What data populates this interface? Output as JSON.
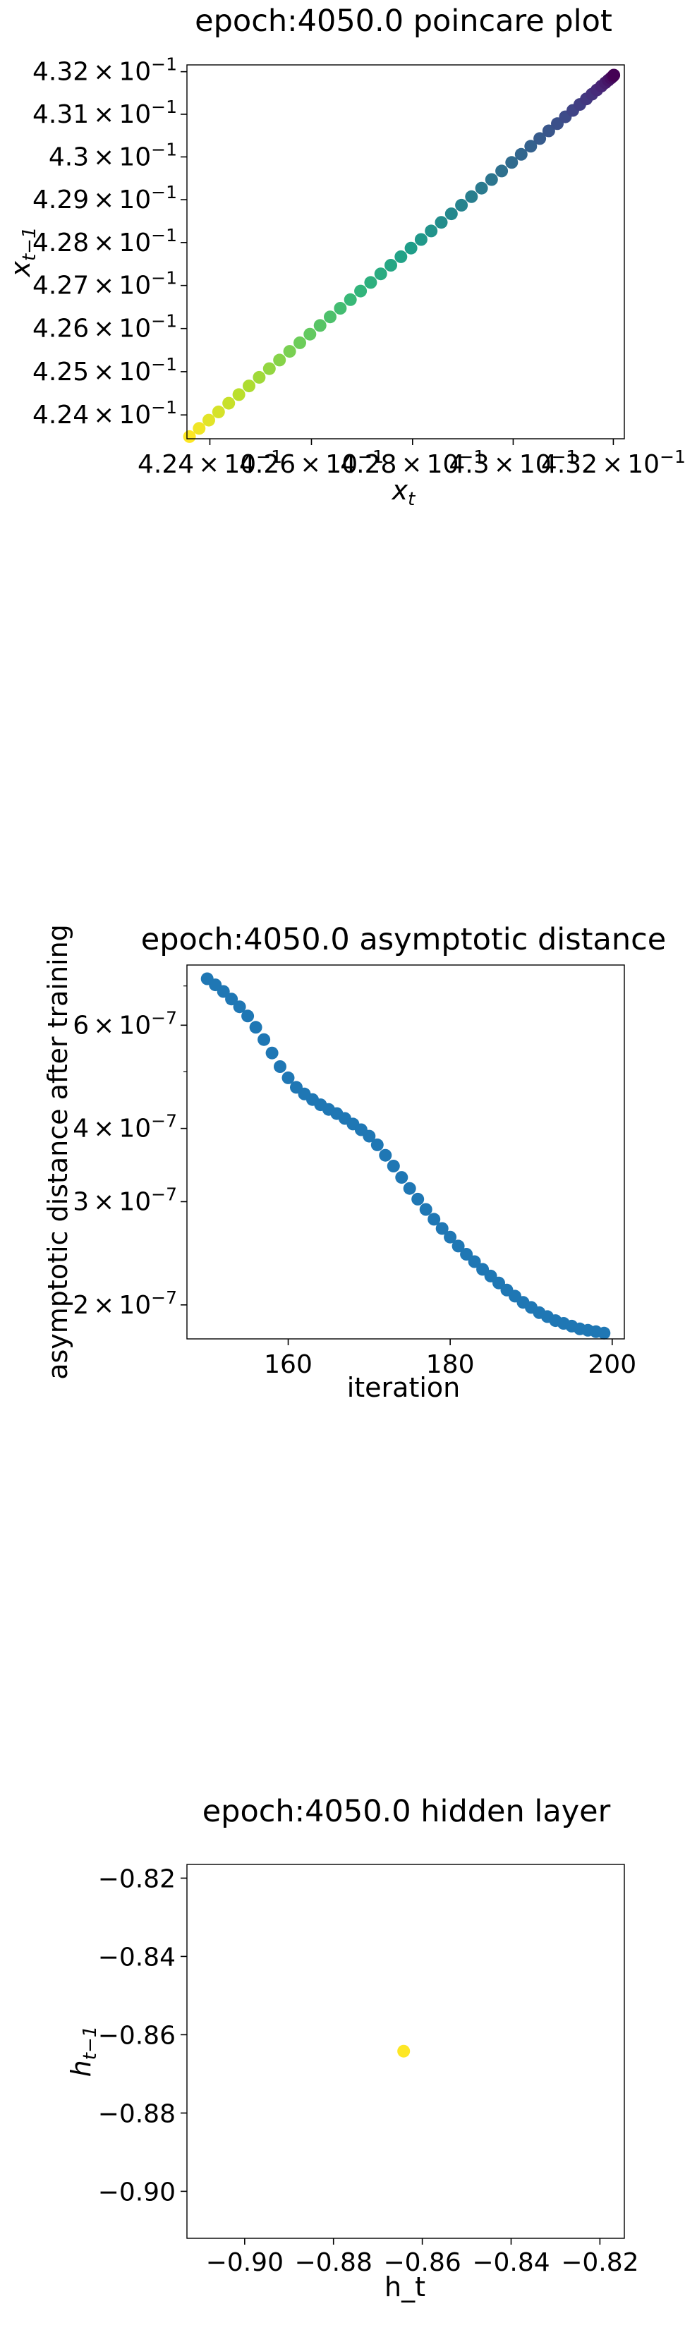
{
  "chart_data": [
    {
      "type": "scatter",
      "title": "epoch:4050.0 poincare plot",
      "xlabel": "x",
      "xlabel_sub": "t",
      "ylabel": "x",
      "ylabel_sub": "t−1",
      "xscale": "log",
      "yscale": "log",
      "xlim": [
        0.42355,
        0.43222
      ],
      "ylim": [
        0.42345,
        0.43216
      ],
      "xticks": [
        {
          "value": 0.424,
          "mantissa": "4.24",
          "times": "×",
          "base": "10",
          "exp": "−1"
        },
        {
          "value": 0.426,
          "mantissa": "4.26",
          "times": "×",
          "base": "10",
          "exp": "−1"
        },
        {
          "value": 0.428,
          "mantissa": "4.28",
          "times": "×",
          "base": "10",
          "exp": "−1"
        },
        {
          "value": 0.43,
          "mantissa": "4.3",
          "times": "×",
          "base": "10",
          "exp": "−1"
        },
        {
          "value": 0.432,
          "mantissa": "4.32",
          "times": "×",
          "base": "10",
          "exp": "−1"
        }
      ],
      "yticks": [
        {
          "value": 0.424,
          "mantissa": "4.24",
          "times": "×",
          "base": "10",
          "exp": "−1"
        },
        {
          "value": 0.425,
          "mantissa": "4.25",
          "times": "×",
          "base": "10",
          "exp": "−1"
        },
        {
          "value": 0.426,
          "mantissa": "4.26",
          "times": "×",
          "base": "10",
          "exp": "−1"
        },
        {
          "value": 0.427,
          "mantissa": "4.27",
          "times": "×",
          "base": "10",
          "exp": "−1"
        },
        {
          "value": 0.428,
          "mantissa": "4.28",
          "times": "×",
          "base": "10",
          "exp": "−1"
        },
        {
          "value": 0.429,
          "mantissa": "4.29",
          "times": "×",
          "base": "10",
          "exp": "−1"
        },
        {
          "value": 0.43,
          "mantissa": "4.3",
          "times": "×",
          "base": "10",
          "exp": "−1"
        },
        {
          "value": 0.431,
          "mantissa": "4.31",
          "times": "×",
          "base": "10",
          "exp": "−1"
        },
        {
          "value": 0.432,
          "mantissa": "4.32",
          "times": "×",
          "base": "10",
          "exp": "−1"
        }
      ],
      "colormap": "viridis",
      "x": [
        0.4236,
        0.42379,
        0.42398,
        0.42417,
        0.42437,
        0.42457,
        0.42477,
        0.42497,
        0.42517,
        0.42537,
        0.42557,
        0.42577,
        0.42597,
        0.42617,
        0.42637,
        0.42657,
        0.42677,
        0.42697,
        0.42717,
        0.42737,
        0.42757,
        0.42777,
        0.42797,
        0.42817,
        0.42837,
        0.42857,
        0.42877,
        0.42897,
        0.42917,
        0.42937,
        0.42957,
        0.42977,
        0.42997,
        0.43016,
        0.43035,
        0.43053,
        0.43071,
        0.43088,
        0.43104,
        0.43119,
        0.43133,
        0.43146,
        0.43157,
        0.43167,
        0.43176,
        0.43184,
        0.4319,
        0.43195,
        0.43199,
        0.43201
      ],
      "y": [
        0.4235,
        0.42369,
        0.42388,
        0.42407,
        0.42427,
        0.42447,
        0.42467,
        0.42487,
        0.42507,
        0.42527,
        0.42547,
        0.42567,
        0.42587,
        0.42607,
        0.42627,
        0.42647,
        0.42667,
        0.42687,
        0.42707,
        0.42727,
        0.42747,
        0.42767,
        0.42787,
        0.42807,
        0.42827,
        0.42847,
        0.42867,
        0.42887,
        0.42907,
        0.42927,
        0.42947,
        0.42967,
        0.42987,
        0.43006,
        0.43025,
        0.43043,
        0.43061,
        0.43078,
        0.43094,
        0.43109,
        0.43123,
        0.43136,
        0.43147,
        0.43157,
        0.43166,
        0.43174,
        0.4318,
        0.43185,
        0.43189,
        0.43192
      ]
    },
    {
      "type": "scatter",
      "title": "epoch:4050.0 asymptotic distance",
      "xlabel": "iteration",
      "ylabel": "asymptotic distance after training",
      "yscale": "log",
      "xlim": [
        147.5,
        201.5
      ],
      "ylim": [
        1.75e-07,
        7.6e-07
      ],
      "color": "#1f77b4",
      "xticks": [
        {
          "value": 160,
          "label": "160"
        },
        {
          "value": 180,
          "label": "180"
        },
        {
          "value": 200,
          "label": "200"
        }
      ],
      "yticks": [
        {
          "value": 2e-07,
          "mantissa": "2",
          "times": "×",
          "base": "10",
          "exp": "−7"
        },
        {
          "value": 3e-07,
          "mantissa": "3",
          "times": "×",
          "base": "10",
          "exp": "−7"
        },
        {
          "value": 4e-07,
          "mantissa": "4",
          "times": "×",
          "base": "10",
          "exp": "−7"
        },
        {
          "value": 6e-07,
          "mantissa": "6",
          "times": "×",
          "base": "10",
          "exp": "−7"
        }
      ],
      "x": [
        150,
        151,
        152,
        153,
        154,
        155,
        156,
        157,
        158,
        159,
        160,
        161,
        162,
        163,
        164,
        165,
        166,
        167,
        168,
        169,
        170,
        171,
        172,
        173,
        174,
        175,
        176,
        177,
        178,
        179,
        180,
        181,
        182,
        183,
        184,
        185,
        186,
        187,
        188,
        189,
        190,
        191,
        192,
        193,
        194,
        195,
        196,
        197,
        198,
        199
      ],
      "y": [
        7.2e-07,
        7.03e-07,
        6.85e-07,
        6.65e-07,
        6.45e-07,
        6.22e-07,
        5.95e-07,
        5.67e-07,
        5.38e-07,
        5.1e-07,
        4.88e-07,
        4.7e-07,
        4.58e-07,
        4.48e-07,
        4.39e-07,
        4.31e-07,
        4.24e-07,
        4.16e-07,
        4.07e-07,
        3.98e-07,
        3.88e-07,
        3.75e-07,
        3.6e-07,
        3.45e-07,
        3.3e-07,
        3.16e-07,
        3.03e-07,
        2.91e-07,
        2.8e-07,
        2.7e-07,
        2.61e-07,
        2.52e-07,
        2.44e-07,
        2.37e-07,
        2.3e-07,
        2.24e-07,
        2.18e-07,
        2.12e-07,
        2.07e-07,
        2.02e-07,
        1.98e-07,
        1.94e-07,
        1.91e-07,
        1.88e-07,
        1.86e-07,
        1.84e-07,
        1.82e-07,
        1.81e-07,
        1.8e-07,
        1.79e-07
      ]
    },
    {
      "type": "scatter",
      "title": "epoch:4050.0 hidden layer",
      "xlabel": "h_t",
      "ylabel": "h",
      "ylabel_sub": "t−1",
      "xlim": [
        -0.913,
        -0.8145
      ],
      "ylim": [
        -0.912,
        -0.8165
      ],
      "color": "#fde725",
      "xticks": [
        {
          "value": -0.9,
          "label": "−0.90"
        },
        {
          "value": -0.88,
          "label": "−0.88"
        },
        {
          "value": -0.86,
          "label": "−0.86"
        },
        {
          "value": -0.84,
          "label": "−0.84"
        },
        {
          "value": -0.82,
          "label": "−0.82"
        }
      ],
      "yticks": [
        {
          "value": -0.82,
          "label": "−0.82"
        },
        {
          "value": -0.84,
          "label": "−0.84"
        },
        {
          "value": -0.86,
          "label": "−0.86"
        },
        {
          "value": -0.88,
          "label": "−0.88"
        },
        {
          "value": -0.9,
          "label": "−0.90"
        }
      ],
      "x": [
        -0.8642
      ],
      "y": [
        -0.8642
      ]
    }
  ]
}
